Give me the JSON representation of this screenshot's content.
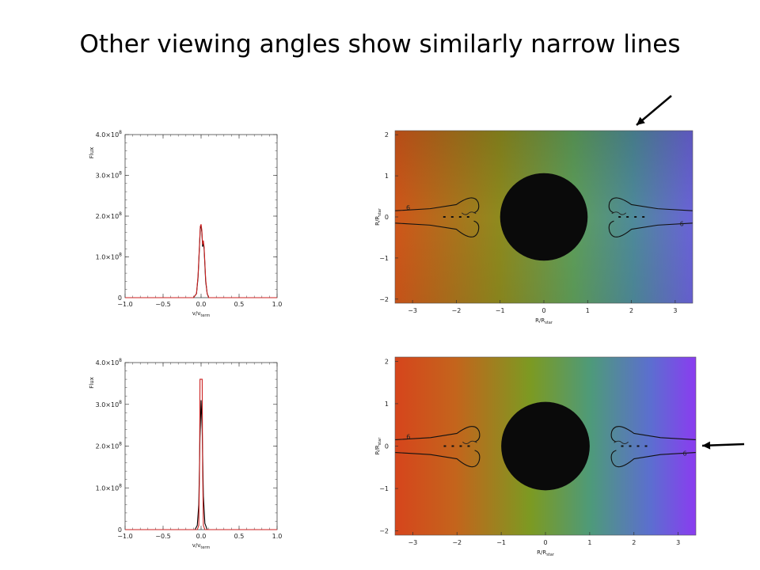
{
  "slide": {
    "title": "Other viewing angles show similarly narrow lines"
  },
  "colors": {
    "line_black": "#000000",
    "line_red": "#cc2222",
    "arrow": "#000000",
    "map_left": "#d2581c",
    "map_mid": "#6a9a4a",
    "map_right": "#8a4ee8"
  },
  "chart_data": [
    {
      "type": "line",
      "xlabel_main": "v/v",
      "xlabel_sub": "term",
      "ylabel": "Flux",
      "xlim": [
        -1.0,
        1.0
      ],
      "ylim": [
        0,
        400000000.0
      ],
      "xticks": [
        "−1.0",
        "−0.5",
        "0.0",
        "0.5",
        "1.0"
      ],
      "yticks": [
        "0",
        "1.0×10",
        "2.0×10",
        "3.0×10",
        "4.0×10"
      ],
      "ytick_exp": "8",
      "series": [
        {
          "color": "black",
          "x": [
            -1,
            -0.1,
            -0.06,
            -0.04,
            -0.02,
            -0.01,
            0.0,
            0.01,
            0.02,
            0.03,
            0.04,
            0.05,
            0.06,
            0.08,
            0.1,
            1
          ],
          "y": [
            0,
            0,
            10000000.0,
            50000000.0,
            130000000.0,
            170000000.0,
            175000000.0,
            160000000.0,
            125000000.0,
            135000000.0,
            120000000.0,
            80000000.0,
            40000000.0,
            10000000.0,
            0,
            0
          ]
        },
        {
          "color": "red",
          "x": [
            -1,
            -0.1,
            -0.06,
            -0.04,
            -0.02,
            -0.01,
            0.0,
            0.01,
            0.02,
            0.03,
            0.04,
            0.05,
            0.06,
            0.08,
            0.1,
            1
          ],
          "y": [
            0,
            0,
            10000000.0,
            55000000.0,
            135000000.0,
            175000000.0,
            180000000.0,
            165000000.0,
            130000000.0,
            140000000.0,
            125000000.0,
            85000000.0,
            45000000.0,
            10000000.0,
            0,
            0
          ]
        }
      ]
    },
    {
      "type": "heatmap",
      "xlabel_main": "R/R",
      "xlabel_sub": "star",
      "ylabel_main": "R/R",
      "ylabel_sub": "star",
      "xlim": [
        -3.4,
        3.4
      ],
      "ylim": [
        -2.1,
        2.1
      ],
      "xticks": [
        "−3",
        "−2",
        "−1",
        "0",
        "1",
        "2",
        "3"
      ],
      "yticks": [
        "−2",
        "−1",
        "0",
        "1",
        "2"
      ],
      "contour_label": "6"
    },
    {
      "type": "line",
      "xlabel_main": "v/v",
      "xlabel_sub": "term",
      "ylabel": "Flux",
      "xlim": [
        -1.0,
        1.0
      ],
      "ylim": [
        0,
        400000000.0
      ],
      "xticks": [
        "−1.0",
        "−0.5",
        "0.0",
        "0.5",
        "1.0"
      ],
      "yticks": [
        "0",
        "1.0×10",
        "2.0×10",
        "3.0×10",
        "4.0×10"
      ],
      "ytick_exp": "8",
      "series": [
        {
          "color": "black",
          "x": [
            -1,
            -0.08,
            -0.05,
            -0.03,
            -0.015,
            0.0,
            0.015,
            0.03,
            0.05,
            0.08,
            1
          ],
          "y": [
            0,
            0,
            10000000.0,
            60000000.0,
            220000000.0,
            310000000.0,
            240000000.0,
            80000000.0,
            15000000.0,
            0,
            0
          ]
        },
        {
          "color": "red",
          "x": [
            -1,
            -0.05,
            -0.03,
            -0.02,
            -0.015,
            0.015,
            0.02,
            0.03,
            0.05,
            1
          ],
          "y": [
            0,
            0,
            10000000.0,
            150000000.0,
            360000000.0,
            360000000.0,
            150000000.0,
            10000000.0,
            0,
            0
          ]
        }
      ]
    },
    {
      "type": "heatmap",
      "xlabel_main": "R/R",
      "xlabel_sub": "star",
      "ylabel_main": "R/R",
      "ylabel_sub": "star",
      "xlim": [
        -3.4,
        3.4
      ],
      "ylim": [
        -2.1,
        2.1
      ],
      "xticks": [
        "−3",
        "−2",
        "−1",
        "0",
        "1",
        "2",
        "3"
      ],
      "yticks": [
        "−2",
        "−1",
        "0",
        "1",
        "2"
      ],
      "contour_label": "6"
    }
  ]
}
